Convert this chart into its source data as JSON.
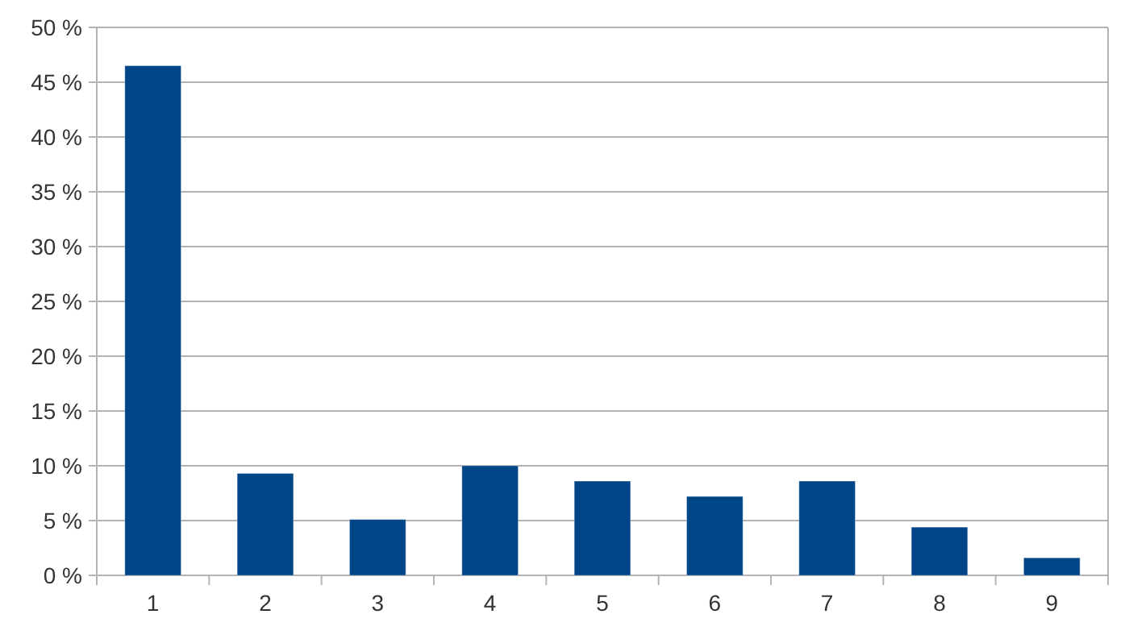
{
  "chart_data": {
    "type": "bar",
    "categories": [
      "1",
      "2",
      "3",
      "4",
      "5",
      "6",
      "7",
      "8",
      "9"
    ],
    "values": [
      46.5,
      9.3,
      5.1,
      10.0,
      8.6,
      7.2,
      8.6,
      4.4,
      1.6
    ],
    "color": "#004586",
    "ylim": [
      0,
      50
    ],
    "yticks": [
      {
        "value": 0,
        "label": "0 %"
      },
      {
        "value": 5,
        "label": "5 %"
      },
      {
        "value": 10,
        "label": "10 %"
      },
      {
        "value": 15,
        "label": "15 %"
      },
      {
        "value": 20,
        "label": "20 %"
      },
      {
        "value": 25,
        "label": "25 %"
      },
      {
        "value": 30,
        "label": "30 %"
      },
      {
        "value": 35,
        "label": "35 %"
      },
      {
        "value": 40,
        "label": "40 %"
      },
      {
        "value": 45,
        "label": "45 %"
      },
      {
        "value": 50,
        "label": "50 %"
      }
    ],
    "grid": "y"
  }
}
